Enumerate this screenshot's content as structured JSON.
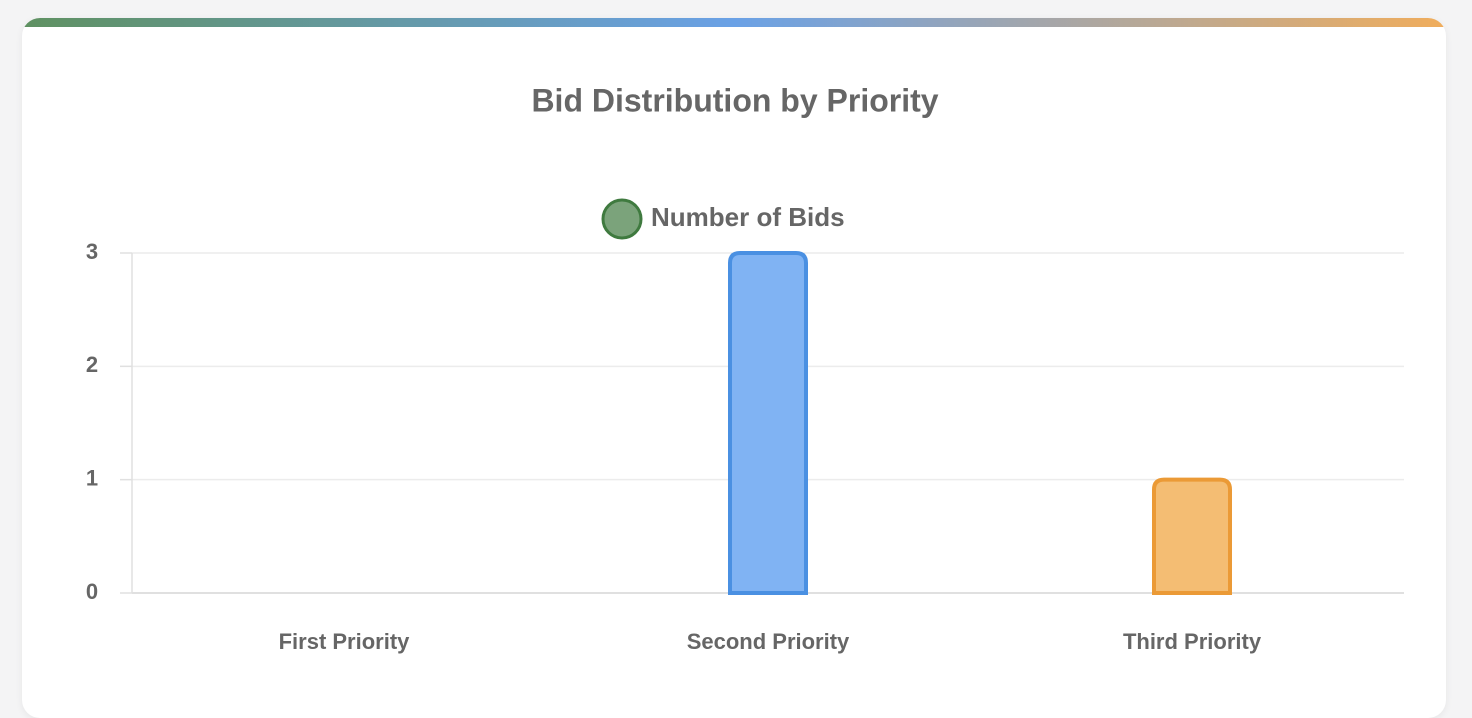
{
  "chart_data": {
    "type": "bar",
    "title": "Bid Distribution by Priority",
    "categories": [
      "First Priority",
      "Second Priority",
      "Third Priority"
    ],
    "series": [
      {
        "name": "Number of Bids",
        "values": [
          0,
          3,
          1
        ],
        "colors": [
          "#7ba37b",
          "#80b3f3",
          "#f4bd73"
        ],
        "border_colors": [
          "#3f7a3f",
          "#4a90e2",
          "#eb9a36"
        ]
      }
    ],
    "ylim": [
      0,
      3
    ],
    "yticks": [
      0,
      1,
      2,
      3
    ],
    "grid": true
  }
}
